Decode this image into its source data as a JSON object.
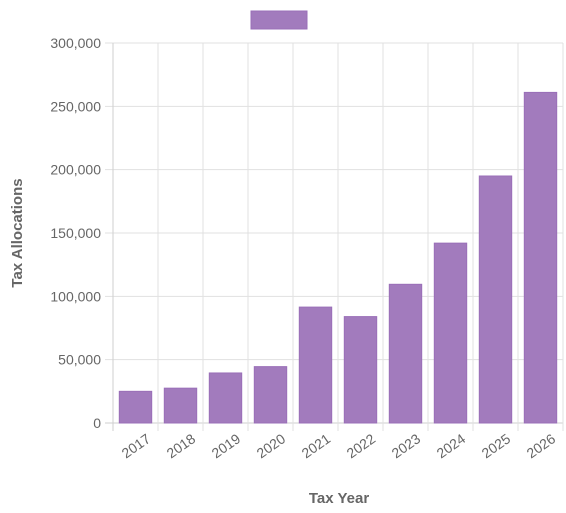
{
  "chart_data": {
    "type": "bar",
    "categories": [
      "2017",
      "2018",
      "2019",
      "2020",
      "2021",
      "2022",
      "2023",
      "2024",
      "2025",
      "2026"
    ],
    "series": [
      {
        "values": [
          25000,
          27500,
          39500,
          44500,
          91500,
          84000,
          109500,
          142000,
          195000,
          261000
        ],
        "color": "#a27bbd"
      }
    ],
    "xlabel": "Tax Year",
    "ylabel": "Tax Allocations",
    "ylim": [
      0,
      300000
    ],
    "yticks": [
      "0",
      "50,000",
      "100,000",
      "150,000",
      "200,000",
      "250,000",
      "300,000"
    ],
    "ytick_values": [
      0,
      50000,
      100000,
      150000,
      200000,
      250000,
      300000
    ],
    "grid": true,
    "legend": "top-center",
    "colors": {
      "bar_fill": "#a27bbd",
      "bar_border": "#9a6fb8",
      "grid": "#e1e1e1",
      "text": "#666666"
    }
  }
}
